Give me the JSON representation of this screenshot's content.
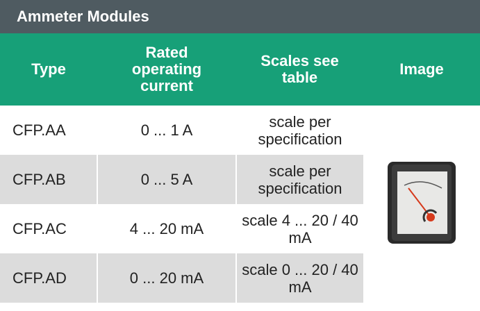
{
  "header": {
    "title": "Ammeter Modules"
  },
  "table": {
    "columns": [
      "Type",
      "Rated operating current",
      "Scales see table",
      "Image"
    ],
    "rows": [
      [
        "CFP.AA",
        "0 ... 1 A",
        "scale per specification"
      ],
      [
        "CFP.AB",
        "0 ... 5 A",
        "scale per specification"
      ],
      [
        "CFP.AC",
        "4 ... 20 mA",
        "scale 4 ... 20 / 40 mA"
      ],
      [
        "CFP.AD",
        "0 ... 20 mA",
        "scale 0 ... 20 / 40 mA"
      ]
    ]
  }
}
